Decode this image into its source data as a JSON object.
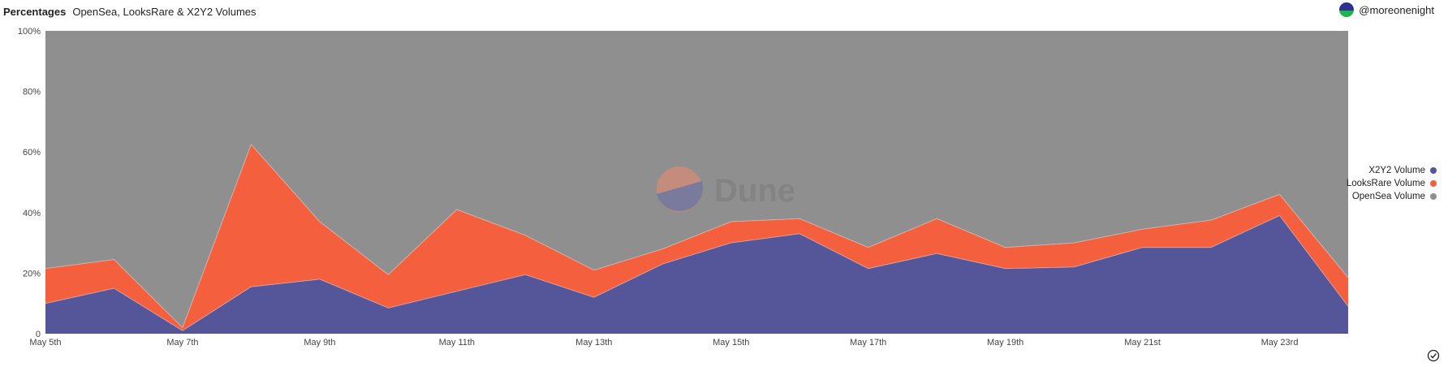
{
  "header": {
    "title": "Percentages",
    "subtitle": "OpenSea, LooksRare & X2Y2 Volumes"
  },
  "user": {
    "handle": "@moreonenight"
  },
  "watermark": {
    "text": "Dune"
  },
  "icons": {
    "avatar": "avatar-icon",
    "verified": "check-circle-icon"
  },
  "colors": {
    "x2y2": "#55559a",
    "looksrare": "#f4603e",
    "opensea": "#8f8f8f"
  },
  "chart_data": {
    "type": "area",
    "stacked": "percent",
    "x": [
      "May 5th",
      "May 6th",
      "May 7th",
      "May 8th",
      "May 9th",
      "May 10th",
      "May 11th",
      "May 12th",
      "May 13th",
      "May 14th",
      "May 15th",
      "May 16th",
      "May 17th",
      "May 18th",
      "May 19th",
      "May 20th",
      "May 21st",
      "May 22nd",
      "May 23rd",
      "May 24th"
    ],
    "xticks": [
      "May 5th",
      "May 7th",
      "May 9th",
      "May 11th",
      "May 13th",
      "May 15th",
      "May 17th",
      "May 19th",
      "May 21st",
      "May 23rd"
    ],
    "yticks": [
      "0",
      "20%",
      "40%",
      "60%",
      "80%",
      "100%"
    ],
    "ylim": [
      0,
      100
    ],
    "series": [
      {
        "name": "X2Y2 Volume",
        "color": "#55559a",
        "values": [
          10,
          15,
          1,
          15.5,
          18,
          8.5,
          14,
          19.5,
          12,
          23,
          30,
          33,
          21.5,
          26.5,
          21.5,
          22,
          28.5,
          28.5,
          39,
          9
        ]
      },
      {
        "name": "LooksRare Volume",
        "color": "#f4603e",
        "values": [
          11.5,
          9.5,
          1,
          47,
          19,
          11,
          27,
          13,
          9,
          5,
          7,
          5,
          7,
          11.5,
          7,
          8,
          6,
          9,
          7,
          9.5
        ]
      },
      {
        "name": "OpenSea Volume",
        "color": "#8f8f8f",
        "values": [
          78.5,
          75.5,
          98,
          37.5,
          63,
          80.5,
          59,
          67.5,
          79,
          72,
          63,
          62,
          71.5,
          62,
          71.5,
          70,
          65.5,
          62.5,
          54,
          81.5
        ]
      }
    ],
    "legend_position": "right"
  }
}
